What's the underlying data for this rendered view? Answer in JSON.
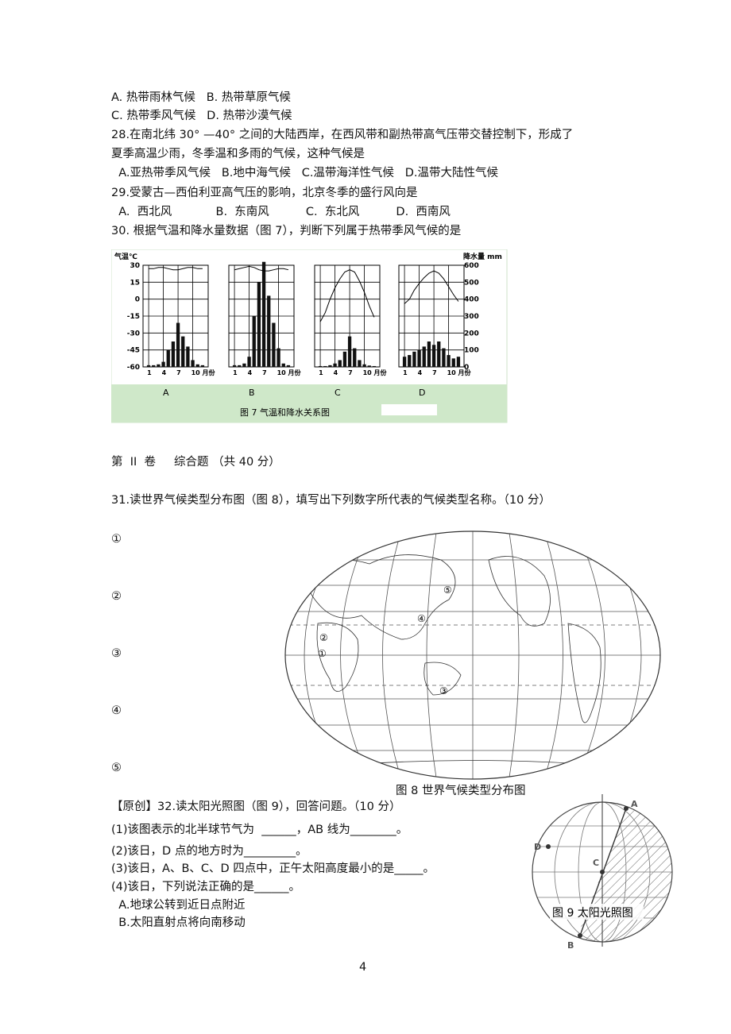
{
  "q27_options": [
    "A. 热带雨林气候   B. 热带草原气候",
    "C. 热带季风气候   D. 热带沙漠气候"
  ],
  "q28": {
    "stem": [
      "28.在南北纬 30° —40° 之间的大陆西岸，在西风带和副热带高气压带交替控制下，形成了",
      "夏季高温少雨，冬季温和多雨的气候，这种气候是"
    ],
    "options": "  A.亚热带季风气候   B.地中海气候   C.温带海洋性气候   D.温带大陆性气候"
  },
  "q29": {
    "stem": "29.受蒙古—西伯利亚高气压的影响，北京冬季的盛行风向是",
    "options": "  A.  西北风            B.  东南风          C.  东北风          D.  西南风"
  },
  "q30": {
    "stem": "30. 根据气温和降水量数据（图 7），判断下列属于热带季风气候的是"
  },
  "figure7": {
    "ylabel": "气温℃",
    "y2label": "降水量 mm",
    "ylim": [
      -60,
      30
    ],
    "yticks": [
      30,
      15,
      0,
      -15,
      -30,
      -45,
      -60
    ],
    "y2lim": [
      0,
      600
    ],
    "y2ticks": [
      600,
      500,
      400,
      300,
      200,
      100,
      0
    ],
    "xticks": [
      1,
      4,
      7,
      {
        "value": 10,
        "label": "10 月份"
      }
    ],
    "caption": "图 7 气温和降水关系图",
    "charts": [
      {
        "label": "A",
        "temperature": [
          27,
          27,
          28,
          28,
          27,
          26,
          26,
          27,
          28,
          28,
          27,
          27
        ],
        "precipitation": [
          10,
          10,
          15,
          30,
          100,
          150,
          260,
          180,
          120,
          40,
          15,
          10
        ]
      },
      {
        "label": "B",
        "temperature": [
          26,
          27,
          28,
          29,
          28,
          26,
          25,
          25,
          26,
          27,
          27,
          26
        ],
        "precipitation": [
          10,
          10,
          20,
          60,
          300,
          500,
          620,
          420,
          260,
          110,
          20,
          10
        ]
      },
      {
        "label": "C",
        "temperature": [
          -20,
          -12,
          0,
          10,
          18,
          24,
          26,
          24,
          16,
          6,
          -6,
          -16
        ],
        "precipitation": [
          5,
          5,
          10,
          20,
          40,
          90,
          180,
          110,
          40,
          15,
          8,
          5
        ]
      },
      {
        "label": "D",
        "temperature": [
          -4,
          0,
          8,
          14,
          19,
          23,
          25,
          23,
          18,
          11,
          4,
          -2
        ],
        "precipitation": [
          60,
          70,
          90,
          100,
          120,
          150,
          130,
          150,
          110,
          70,
          50,
          60
        ]
      }
    ]
  },
  "section2": "第  II  卷     综合题 （共 40 分）",
  "q31": {
    "stem": "31.读世界气候类型分布图（图 8），填写出下列数字所代表的气候类型名称。（10 分）",
    "blanks": [
      "①",
      "②",
      "③",
      "④",
      "⑤"
    ]
  },
  "map": {
    "labels": [
      "①",
      "②",
      "③",
      "④",
      "⑤"
    ],
    "caption": "图 8 世界气候类型分布图"
  },
  "q32": {
    "stem": "【原创】32.读太阳光照图（图 9），回答问题。（10 分）",
    "items": [
      "(1)该图表示的北半球节气为  ______，AB 线为________。",
      "(2)该日，D 点的地方时为_________。",
      "(3)该日，A、B、C、D 四点中，正午太阳高度最小的是_____。",
      "(4)该日，下列说法正确的是______。",
      "  A.地球公转到近日点附近",
      "  B.太阳直射点将向南移动"
    ]
  },
  "globe": {
    "points": [
      "A",
      "B",
      "C",
      "D"
    ],
    "caption": "图 9 太阳光照图"
  },
  "page_number": "4"
}
